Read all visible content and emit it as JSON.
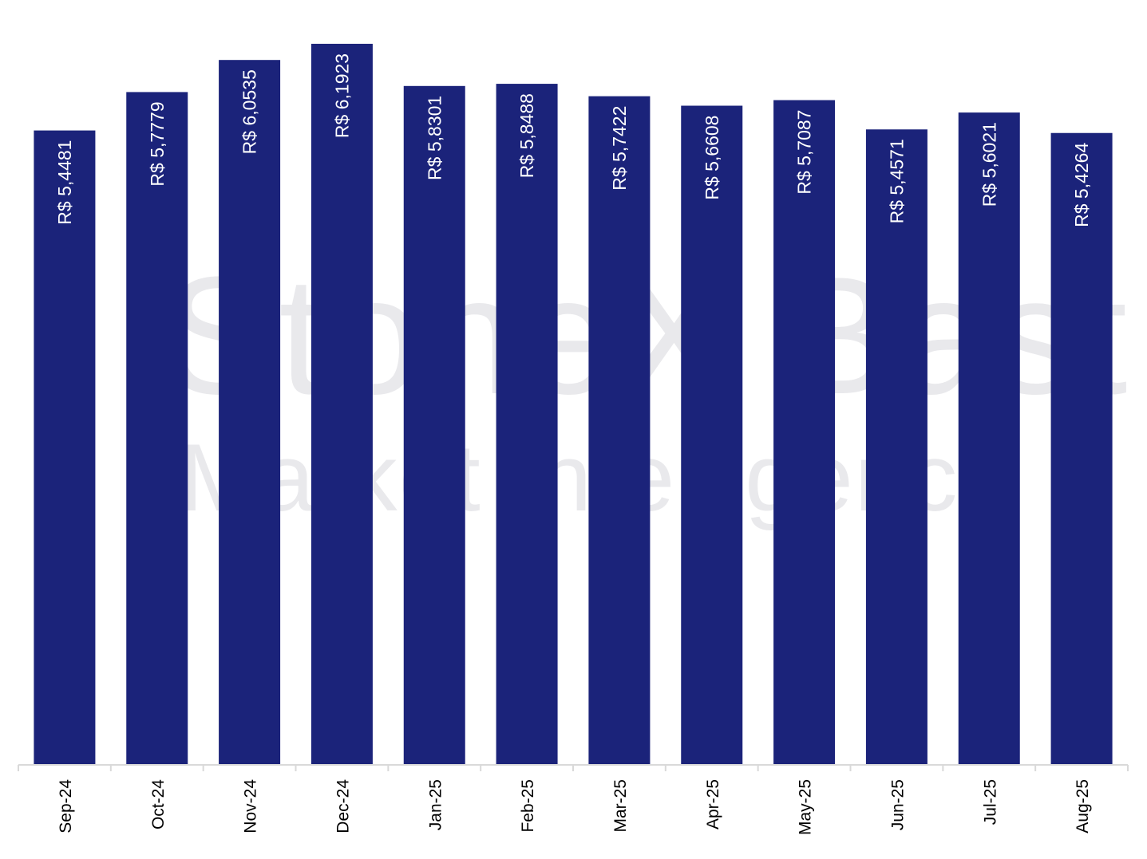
{
  "watermark": {
    "line1": "StoneX Bast",
    "line2": "Market Intelligence"
  },
  "colors": {
    "bar": "#1b237a",
    "bar_label": "#ffffff",
    "axis": "#d9d9d9",
    "tick_label": "#000000"
  },
  "chart_data": {
    "type": "bar",
    "categories": [
      "Sep-24",
      "Oct-24",
      "Nov-24",
      "Dec-24",
      "Jan-25",
      "Feb-25",
      "Mar-25",
      "Apr-25",
      "May-25",
      "Jun-25",
      "Jul-25",
      "Aug-25"
    ],
    "values": [
      5.4481,
      5.7779,
      6.0535,
      6.1923,
      5.8301,
      5.8488,
      5.7422,
      5.6608,
      5.7087,
      5.4571,
      5.6021,
      5.4264
    ],
    "data_labels": [
      "R$ 5,4481",
      "R$ 5,7779",
      "R$ 6,0535",
      "R$ 6,1923",
      "R$ 5,8301",
      "R$ 5,8488",
      "R$ 5,7422",
      "R$ 5,6608",
      "R$ 5,7087",
      "R$ 5,4571",
      "R$ 5,6021",
      "R$ 5,4264"
    ],
    "ylim": [
      0,
      6.5
    ],
    "grid": false,
    "legend": "none",
    "title": "",
    "xlabel": "",
    "ylabel": ""
  }
}
